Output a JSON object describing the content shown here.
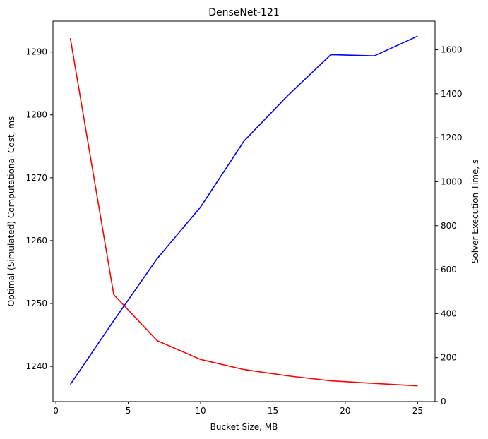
{
  "chart_data": {
    "type": "line",
    "title": "DenseNet-121",
    "xlabel": "Bucket Size, MB",
    "ylabel": "Optimal (Simulated) Computational Cost, ms",
    "y2label": "Solver Execution Time, s",
    "xlim": [
      -0.2,
      26.2
    ],
    "ylim": [
      1234.4,
      1294.9
    ],
    "y2lim": [
      0,
      1730
    ],
    "x_ticks": [
      0,
      5,
      10,
      15,
      20,
      25
    ],
    "y_ticks": [
      1240,
      1250,
      1260,
      1270,
      1280,
      1290
    ],
    "y2_ticks": [
      0,
      200,
      400,
      600,
      800,
      1000,
      1200,
      1400,
      1600
    ],
    "grid": false,
    "x": [
      1,
      4,
      7,
      10,
      13,
      16,
      19,
      22,
      25
    ],
    "series": [
      {
        "axis": "left",
        "color": "#ff0000",
        "values": [
          1292.2,
          1251.4,
          1244.1,
          1241.1,
          1239.5,
          1238.5,
          1237.7,
          1237.3,
          1236.9
        ]
      },
      {
        "axis": "right",
        "color": "#0000ff",
        "values": [
          78,
          368,
          650,
          885,
          1185,
          1390,
          1578,
          1572,
          1662
        ]
      }
    ]
  }
}
